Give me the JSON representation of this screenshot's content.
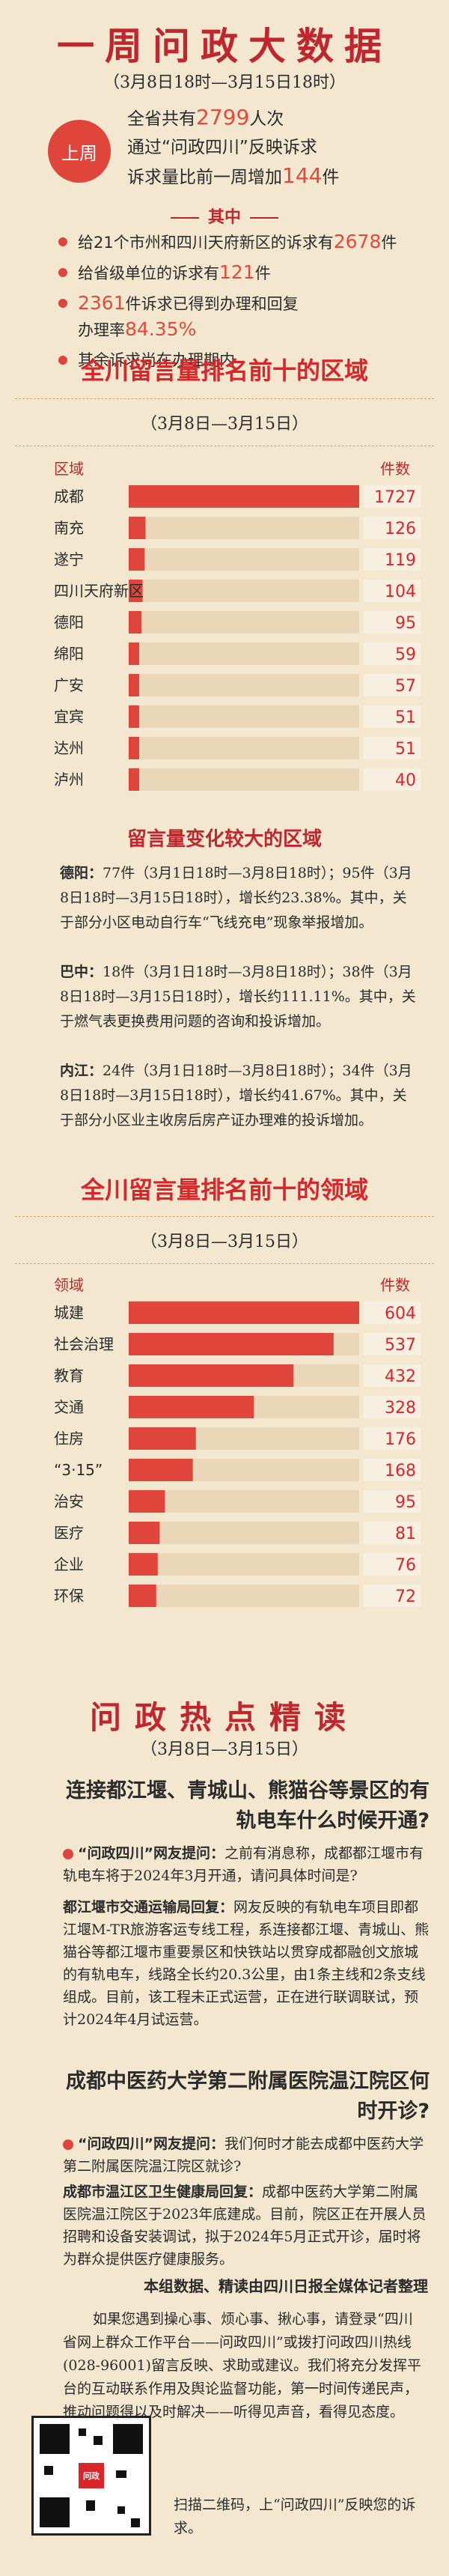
{
  "header": {
    "title": "一周问政大数据",
    "date_range": "（3月8日18时—3月15日18时）",
    "badge": "上周",
    "summary_line1_pre": "全省共有",
    "summary_line1_num": "2799",
    "summary_line1_post": "人次",
    "summary_line2": "通过“问政四川”反映诉求",
    "summary_line3_pre": "诉求量比前一周增加",
    "summary_line3_num": "144",
    "summary_line3_post": "件"
  },
  "breakdown": {
    "title": "其中",
    "items": [
      {
        "pre": "给21个市州和四川天府新区的诉求有",
        "num": "2678",
        "post": "件"
      },
      {
        "pre": "给省级单位的诉求有",
        "num": "121",
        "post": "件"
      },
      {
        "pre": "",
        "num": "2361",
        "post": "件诉求已得到办理和回复",
        "extra_pre": "办理率",
        "extra_num": "84.35%"
      },
      {
        "pre": "其余诉求尚在办理期内",
        "num": "",
        "post": ""
      }
    ]
  },
  "regions_section": {
    "title": "全川留言量排名前十的区域",
    "date": "（3月8日—3月15日）",
    "col_left": "区域",
    "col_right": "件数"
  },
  "chart_data": [
    {
      "type": "bar",
      "orientation": "horizontal",
      "title": "全川留言量排名前十的区域",
      "categories": [
        "成都",
        "南充",
        "遂宁",
        "四川天府新区",
        "德阳",
        "绵阳",
        "广安",
        "宜宾",
        "达州",
        "泸州"
      ],
      "values": [
        1727,
        126,
        119,
        104,
        95,
        59,
        57,
        51,
        51,
        40
      ]
    },
    {
      "type": "bar",
      "orientation": "horizontal",
      "title": "全川留言量排名前十的领域",
      "categories": [
        "城建",
        "社会治理",
        "教育",
        "交通",
        "住房",
        "“3·15”",
        "治安",
        "医疗",
        "企业",
        "环保"
      ],
      "values": [
        604,
        537,
        432,
        328,
        176,
        168,
        95,
        81,
        76,
        72
      ]
    }
  ],
  "change_section": {
    "title": "留言量变化较大的区域",
    "items": [
      {
        "place": "德阳：",
        "text": "77件（3月1日18时—3月8日18时）；95件（3月8日18时—3月15日18时），增长约23.38%。其中，关于部分小区电动自行车“飞线充电”现象举报增加。"
      },
      {
        "place": "巴中：",
        "text": "18件（3月1日18时—3月8日18时）；38件（3月8日18时—3月15日18时），增长约111.11%。其中，关于燃气表更换费用问题的咨询和投诉增加。"
      },
      {
        "place": "内江：",
        "text": "24件（3月1日18时—3月8日18时）；34件（3月8日18时—3月15日18时），增长约41.67%。其中，关于部分小区业主收房后房产证办理难的投诉增加。"
      }
    ]
  },
  "fields_section": {
    "title": "全川留言量排名前十的领域",
    "date": "（3月8日—3月15日）",
    "col_left": "领域",
    "col_right": "件数"
  },
  "hot": {
    "title": "问政热点精读",
    "date": "（3月8日—3月15日）",
    "q1_title": "连接都江堰、青城山、熊猫谷等景区的有轨电车什么时候开通?",
    "q1_ask_lead": "“问政四川”网友提问：",
    "q1_ask": "之前有消息称，成都都江堰市有轨电车将于2024年3月开通，请问具体时间是?",
    "q1_ans_lead": "都江堰市交通运输局回复：",
    "q1_ans": "网友反映的有轨电车项目即都江堰M-TR旅游客运专线工程，系连接都江堰、青城山、熊猫谷等都江堰市重要景区和快铁站以贯穿成都融创文旅城的有轨电车，线路全长约20.3公里，由1条主线和2条支线组成。目前，该工程未正式运营，正在进行联调联试，预计2024年4月试运营。",
    "q2_title": "成都中医药大学第二附属医院温江院区何时开诊?",
    "q2_ask_lead": "“问政四川”网友提问：",
    "q2_ask": "我们何时才能去成都中医药大学第二附属医院温江院区就诊?",
    "q2_ans_lead": "成都市温江区卫生健康局回复：",
    "q2_ans": "成都中医药大学第二附属医院温江院区于2023年底建成。目前，院区正在开展人员招聘和设备安装调试，拟于2024年5月正式开诊，届时将为群众提供医疗健康服务。",
    "credit": "本组数据、精读由四川日报全媒体记者整理"
  },
  "footer": {
    "text1": "如果您遇到操心事、烦心事、揪心事，请登录“四川省网上群众工作平台——问政四川”或拨打问政四川热线(028-96001)留言反映、求助或建议。我们将充分发挥平台的互动联系作用及舆论监督功能，第一时间传递民声，推动问题得以及时解决——听得见声音，看得见态度。",
    "text2": "扫描二维码，上“问政四川”反映您的诉求。",
    "qr_label": "问政"
  }
}
